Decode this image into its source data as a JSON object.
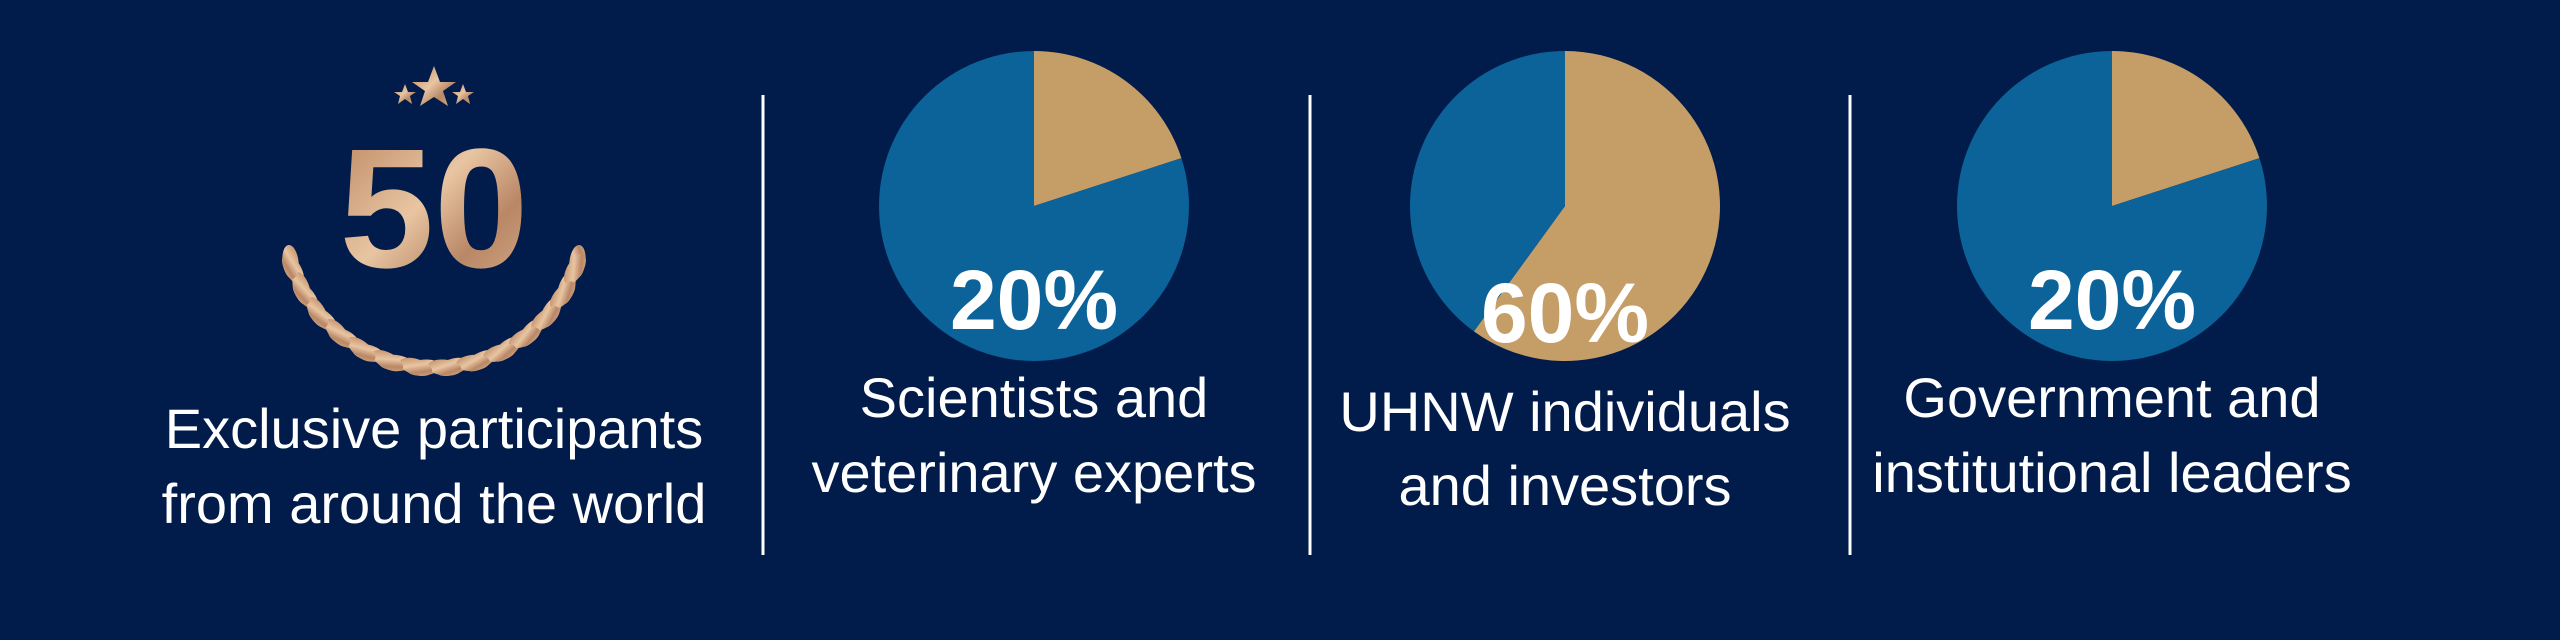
{
  "badge": {
    "number": "50",
    "label": [
      "Exclusive participants",
      "from around the world"
    ]
  },
  "chart_data": [
    {
      "type": "pie",
      "title": [
        "Scientists and",
        "veterinary experts"
      ],
      "values": [
        20,
        80
      ],
      "value_labels": [
        "20%",
        null
      ],
      "colors": [
        "#c59d67",
        "#0b6399"
      ]
    },
    {
      "type": "pie",
      "title": [
        "UHNW individuals",
        "and investors"
      ],
      "values": [
        60,
        40
      ],
      "value_labels": [
        "60%",
        null
      ],
      "colors": [
        "#c59d67",
        "#0b6399"
      ]
    },
    {
      "type": "pie",
      "title": [
        "Government and",
        "institutional leaders"
      ],
      "values": [
        20,
        80
      ],
      "value_labels": [
        "20%",
        null
      ],
      "colors": [
        "#c59d67",
        "#0b6399"
      ]
    }
  ]
}
